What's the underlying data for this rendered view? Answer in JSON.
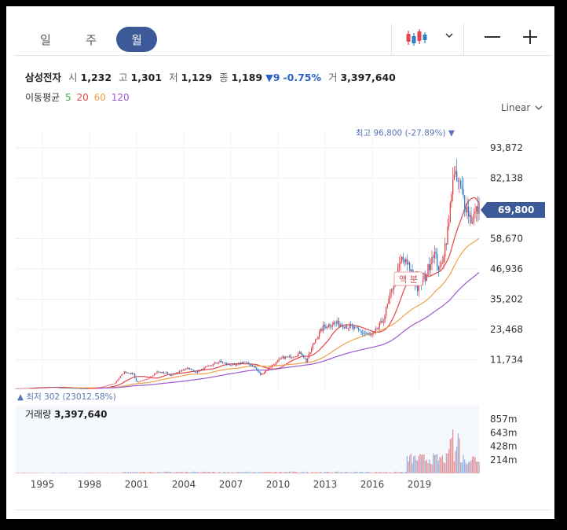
{
  "tabs": [
    {
      "label": "일",
      "active": false
    },
    {
      "label": "주",
      "active": false
    },
    {
      "label": "월",
      "active": true
    }
  ],
  "toolbar": {
    "chart_type_icon": "candlestick-icon",
    "dropdown_icon": "chevron-down-icon",
    "zoom_out_icon": "minus-icon",
    "zoom_in_icon": "plus-icon"
  },
  "quote": {
    "name": "삼성전자",
    "open_label": "시",
    "open": "1,232",
    "high_label": "고",
    "high": "1,301",
    "low_label": "저",
    "low": "1,129",
    "close_label": "종",
    "close": "1,189",
    "change_arrow": "▼",
    "change": "9",
    "change_pct": "-0.75%",
    "volume_label": "거",
    "volume": "3,397,640"
  },
  "moving_average": {
    "label": "이동평균",
    "periods": [
      {
        "value": "5",
        "color": "#3cae44"
      },
      {
        "value": "20",
        "color": "#e0474c"
      },
      {
        "value": "60",
        "color": "#f0a04b"
      },
      {
        "value": "120",
        "color": "#9b59d0"
      }
    ]
  },
  "scale_mode": "Linear",
  "colors": {
    "up": "#e0474c",
    "down": "#2d7fc9",
    "current_badge": "#3c5a9a",
    "annotation": "#5875b5",
    "volume": "#8fb0dd"
  },
  "chart_data": {
    "type": "candlestick",
    "x_ticks": [
      "1995",
      "1998",
      "2001",
      "2004",
      "2007",
      "2010",
      "2013",
      "2016",
      "2019"
    ],
    "x_range": [
      1993.3,
      2022.8
    ],
    "y_ticks": [
      {
        "label": "93,872",
        "value": 93872
      },
      {
        "label": "82,138",
        "value": 82138
      },
      {
        "label": "58,670",
        "value": 58670
      },
      {
        "label": "46,936",
        "value": 46936
      },
      {
        "label": "35,202",
        "value": 35202
      },
      {
        "label": "23,468",
        "value": 23468
      },
      {
        "label": "11,734",
        "value": 11734
      }
    ],
    "ylim": [
      0,
      100000
    ],
    "current_price": {
      "label": "69,800",
      "value": 69800
    },
    "high_annotation": {
      "prefix": "최고",
      "value": "96,800",
      "pct": "(-27.89%)",
      "arrow": "▼",
      "price": 96800,
      "year": 2021.0
    },
    "low_annotation": {
      "arrow": "▲",
      "prefix": "최저",
      "value": "302",
      "pct": "(23012.58%)",
      "price": 302
    },
    "event_label": {
      "text": "액 분",
      "year": 2018.3,
      "price": 43000
    },
    "price_path": [
      [
        1993.3,
        600
      ],
      [
        1995.5,
        1200
      ],
      [
        1996.5,
        800
      ],
      [
        1997.8,
        500
      ],
      [
        1998.8,
        1200
      ],
      [
        1999.6,
        2600
      ],
      [
        2000.2,
        7000
      ],
      [
        2000.8,
        6200
      ],
      [
        2001.0,
        3000
      ],
      [
        2001.6,
        4000
      ],
      [
        2002.3,
        7000
      ],
      [
        2002.9,
        6600
      ],
      [
        2003.2,
        5500
      ],
      [
        2004.2,
        8600
      ],
      [
        2004.8,
        7000
      ],
      [
        2005.5,
        9000
      ],
      [
        2006.3,
        11000
      ],
      [
        2006.8,
        10000
      ],
      [
        2007.3,
        9500
      ],
      [
        2007.8,
        11000
      ],
      [
        2008.5,
        9000
      ],
      [
        2008.9,
        5800
      ],
      [
        2009.5,
        9000
      ],
      [
        2010.3,
        12500
      ],
      [
        2010.9,
        13000
      ],
      [
        2011.5,
        14500
      ],
      [
        2011.8,
        11000
      ],
      [
        2012.4,
        20000
      ],
      [
        2012.9,
        24500
      ],
      [
        2013.6,
        26000
      ],
      [
        2014.3,
        25000
      ],
      [
        2014.8,
        24000
      ],
      [
        2015.5,
        22000
      ],
      [
        2016.0,
        21000
      ],
      [
        2016.7,
        27000
      ],
      [
        2017.3,
        40000
      ],
      [
        2017.9,
        51000
      ],
      [
        2018.4,
        47000
      ],
      [
        2018.9,
        39000
      ],
      [
        2019.4,
        44000
      ],
      [
        2019.9,
        54000
      ],
      [
        2020.3,
        46000
      ],
      [
        2020.6,
        55000
      ],
      [
        2020.9,
        65000
      ],
      [
        2021.1,
        83000
      ],
      [
        2021.5,
        80000
      ],
      [
        2021.9,
        73000
      ],
      [
        2022.3,
        66000
      ],
      [
        2022.7,
        70000
      ]
    ],
    "ma_smoothing_years": {
      "20": 1.5,
      "60": 4.5,
      "120": 8.5
    },
    "volume": {
      "label": "거래량",
      "value": "3,397,640",
      "y_ticks": [
        {
          "label": "857m",
          "value": 857
        },
        {
          "label": "643m",
          "value": 643
        },
        {
          "label": "428m",
          "value": 428
        },
        {
          "label": "214m",
          "value": 214
        }
      ],
      "ylim": [
        0,
        1071
      ],
      "units": "m"
    }
  }
}
